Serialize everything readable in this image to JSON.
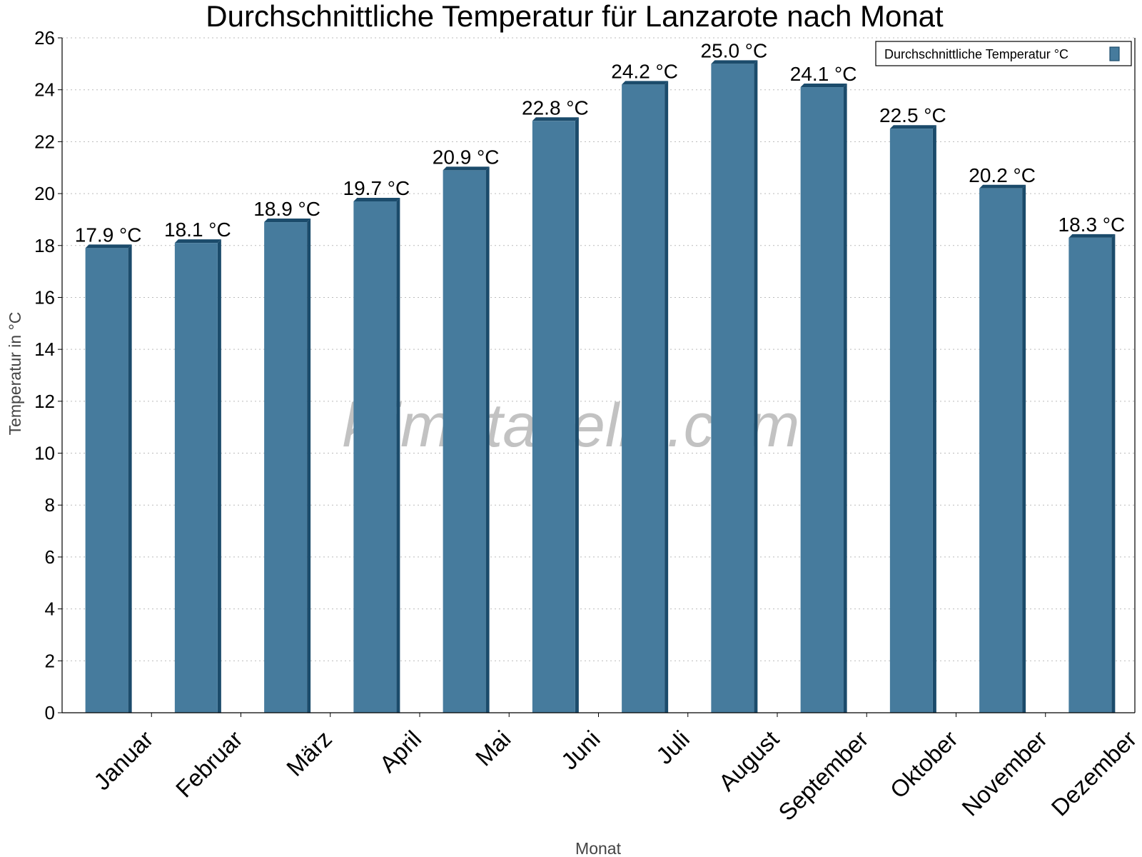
{
  "chart_data": {
    "type": "bar",
    "title": "Durchschnittliche Temperatur für Lanzarote nach Monat",
    "xlabel": "Monat",
    "ylabel": "Temperatur in °C",
    "ylim": [
      0,
      26
    ],
    "yticks": [
      0,
      2,
      4,
      6,
      8,
      10,
      12,
      14,
      16,
      18,
      20,
      22,
      24,
      26
    ],
    "grid": true,
    "legend_position": "top-right",
    "categories": [
      "Januar",
      "Februar",
      "März",
      "April",
      "Mai",
      "Juni",
      "Juli",
      "August",
      "September",
      "Oktober",
      "November",
      "Dezember"
    ],
    "series": [
      {
        "name": "Durchschnittliche Temperatur °C",
        "values": [
          17.9,
          18.1,
          18.9,
          19.7,
          20.9,
          22.8,
          24.2,
          25.0,
          24.1,
          22.5,
          20.2,
          18.3
        ],
        "labels": [
          "17.9 °C",
          "18.1 °C",
          "18.9 °C",
          "19.7 °C",
          "20.9 °C",
          "22.8 °C",
          "24.2 °C",
          "25.0 °C",
          "24.1 °C",
          "22.5 °C",
          "20.2 °C",
          "18.3 °C"
        ],
        "color": "#467b9d",
        "edge_color": "#1b4b6b"
      }
    ],
    "watermark": "klimatabelle.com"
  }
}
